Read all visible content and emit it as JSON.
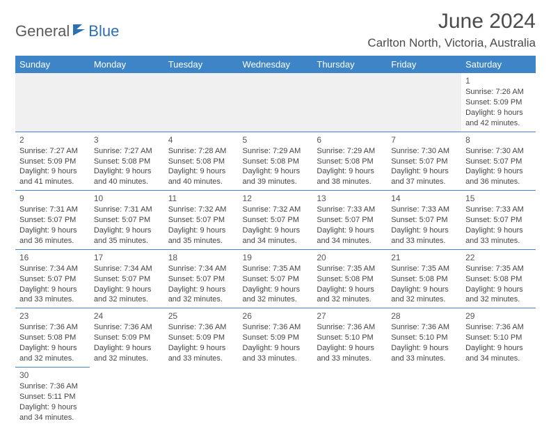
{
  "brand": {
    "part1": "General",
    "part2": "Blue"
  },
  "title": "June 2024",
  "location": "Carlton North, Victoria, Australia",
  "colors": {
    "header_bg": "#3d85c6",
    "header_text": "#ffffff",
    "border": "#3d85c6",
    "empty_bg": "#f0f0f0",
    "text": "#444444",
    "brand_gray": "#5a5a5a",
    "brand_blue": "#2d6fb3"
  },
  "day_headers": [
    "Sunday",
    "Monday",
    "Tuesday",
    "Wednesday",
    "Thursday",
    "Friday",
    "Saturday"
  ],
  "weeks": [
    [
      null,
      null,
      null,
      null,
      null,
      null,
      {
        "n": "1",
        "sunrise": "Sunrise: 7:26 AM",
        "sunset": "Sunset: 5:09 PM",
        "dl1": "Daylight: 9 hours",
        "dl2": "and 42 minutes."
      }
    ],
    [
      {
        "n": "2",
        "sunrise": "Sunrise: 7:27 AM",
        "sunset": "Sunset: 5:09 PM",
        "dl1": "Daylight: 9 hours",
        "dl2": "and 41 minutes."
      },
      {
        "n": "3",
        "sunrise": "Sunrise: 7:27 AM",
        "sunset": "Sunset: 5:08 PM",
        "dl1": "Daylight: 9 hours",
        "dl2": "and 40 minutes."
      },
      {
        "n": "4",
        "sunrise": "Sunrise: 7:28 AM",
        "sunset": "Sunset: 5:08 PM",
        "dl1": "Daylight: 9 hours",
        "dl2": "and 40 minutes."
      },
      {
        "n": "5",
        "sunrise": "Sunrise: 7:29 AM",
        "sunset": "Sunset: 5:08 PM",
        "dl1": "Daylight: 9 hours",
        "dl2": "and 39 minutes."
      },
      {
        "n": "6",
        "sunrise": "Sunrise: 7:29 AM",
        "sunset": "Sunset: 5:08 PM",
        "dl1": "Daylight: 9 hours",
        "dl2": "and 38 minutes."
      },
      {
        "n": "7",
        "sunrise": "Sunrise: 7:30 AM",
        "sunset": "Sunset: 5:07 PM",
        "dl1": "Daylight: 9 hours",
        "dl2": "and 37 minutes."
      },
      {
        "n": "8",
        "sunrise": "Sunrise: 7:30 AM",
        "sunset": "Sunset: 5:07 PM",
        "dl1": "Daylight: 9 hours",
        "dl2": "and 36 minutes."
      }
    ],
    [
      {
        "n": "9",
        "sunrise": "Sunrise: 7:31 AM",
        "sunset": "Sunset: 5:07 PM",
        "dl1": "Daylight: 9 hours",
        "dl2": "and 36 minutes."
      },
      {
        "n": "10",
        "sunrise": "Sunrise: 7:31 AM",
        "sunset": "Sunset: 5:07 PM",
        "dl1": "Daylight: 9 hours",
        "dl2": "and 35 minutes."
      },
      {
        "n": "11",
        "sunrise": "Sunrise: 7:32 AM",
        "sunset": "Sunset: 5:07 PM",
        "dl1": "Daylight: 9 hours",
        "dl2": "and 35 minutes."
      },
      {
        "n": "12",
        "sunrise": "Sunrise: 7:32 AM",
        "sunset": "Sunset: 5:07 PM",
        "dl1": "Daylight: 9 hours",
        "dl2": "and 34 minutes."
      },
      {
        "n": "13",
        "sunrise": "Sunrise: 7:33 AM",
        "sunset": "Sunset: 5:07 PM",
        "dl1": "Daylight: 9 hours",
        "dl2": "and 34 minutes."
      },
      {
        "n": "14",
        "sunrise": "Sunrise: 7:33 AM",
        "sunset": "Sunset: 5:07 PM",
        "dl1": "Daylight: 9 hours",
        "dl2": "and 33 minutes."
      },
      {
        "n": "15",
        "sunrise": "Sunrise: 7:33 AM",
        "sunset": "Sunset: 5:07 PM",
        "dl1": "Daylight: 9 hours",
        "dl2": "and 33 minutes."
      }
    ],
    [
      {
        "n": "16",
        "sunrise": "Sunrise: 7:34 AM",
        "sunset": "Sunset: 5:07 PM",
        "dl1": "Daylight: 9 hours",
        "dl2": "and 33 minutes."
      },
      {
        "n": "17",
        "sunrise": "Sunrise: 7:34 AM",
        "sunset": "Sunset: 5:07 PM",
        "dl1": "Daylight: 9 hours",
        "dl2": "and 32 minutes."
      },
      {
        "n": "18",
        "sunrise": "Sunrise: 7:34 AM",
        "sunset": "Sunset: 5:07 PM",
        "dl1": "Daylight: 9 hours",
        "dl2": "and 32 minutes."
      },
      {
        "n": "19",
        "sunrise": "Sunrise: 7:35 AM",
        "sunset": "Sunset: 5:07 PM",
        "dl1": "Daylight: 9 hours",
        "dl2": "and 32 minutes."
      },
      {
        "n": "20",
        "sunrise": "Sunrise: 7:35 AM",
        "sunset": "Sunset: 5:08 PM",
        "dl1": "Daylight: 9 hours",
        "dl2": "and 32 minutes."
      },
      {
        "n": "21",
        "sunrise": "Sunrise: 7:35 AM",
        "sunset": "Sunset: 5:08 PM",
        "dl1": "Daylight: 9 hours",
        "dl2": "and 32 minutes."
      },
      {
        "n": "22",
        "sunrise": "Sunrise: 7:35 AM",
        "sunset": "Sunset: 5:08 PM",
        "dl1": "Daylight: 9 hours",
        "dl2": "and 32 minutes."
      }
    ],
    [
      {
        "n": "23",
        "sunrise": "Sunrise: 7:36 AM",
        "sunset": "Sunset: 5:08 PM",
        "dl1": "Daylight: 9 hours",
        "dl2": "and 32 minutes."
      },
      {
        "n": "24",
        "sunrise": "Sunrise: 7:36 AM",
        "sunset": "Sunset: 5:09 PM",
        "dl1": "Daylight: 9 hours",
        "dl2": "and 32 minutes."
      },
      {
        "n": "25",
        "sunrise": "Sunrise: 7:36 AM",
        "sunset": "Sunset: 5:09 PM",
        "dl1": "Daylight: 9 hours",
        "dl2": "and 33 minutes."
      },
      {
        "n": "26",
        "sunrise": "Sunrise: 7:36 AM",
        "sunset": "Sunset: 5:09 PM",
        "dl1": "Daylight: 9 hours",
        "dl2": "and 33 minutes."
      },
      {
        "n": "27",
        "sunrise": "Sunrise: 7:36 AM",
        "sunset": "Sunset: 5:10 PM",
        "dl1": "Daylight: 9 hours",
        "dl2": "and 33 minutes."
      },
      {
        "n": "28",
        "sunrise": "Sunrise: 7:36 AM",
        "sunset": "Sunset: 5:10 PM",
        "dl1": "Daylight: 9 hours",
        "dl2": "and 33 minutes."
      },
      {
        "n": "29",
        "sunrise": "Sunrise: 7:36 AM",
        "sunset": "Sunset: 5:10 PM",
        "dl1": "Daylight: 9 hours",
        "dl2": "and 34 minutes."
      }
    ],
    [
      {
        "n": "30",
        "sunrise": "Sunrise: 7:36 AM",
        "sunset": "Sunset: 5:11 PM",
        "dl1": "Daylight: 9 hours",
        "dl2": "and 34 minutes."
      },
      null,
      null,
      null,
      null,
      null,
      null
    ]
  ]
}
